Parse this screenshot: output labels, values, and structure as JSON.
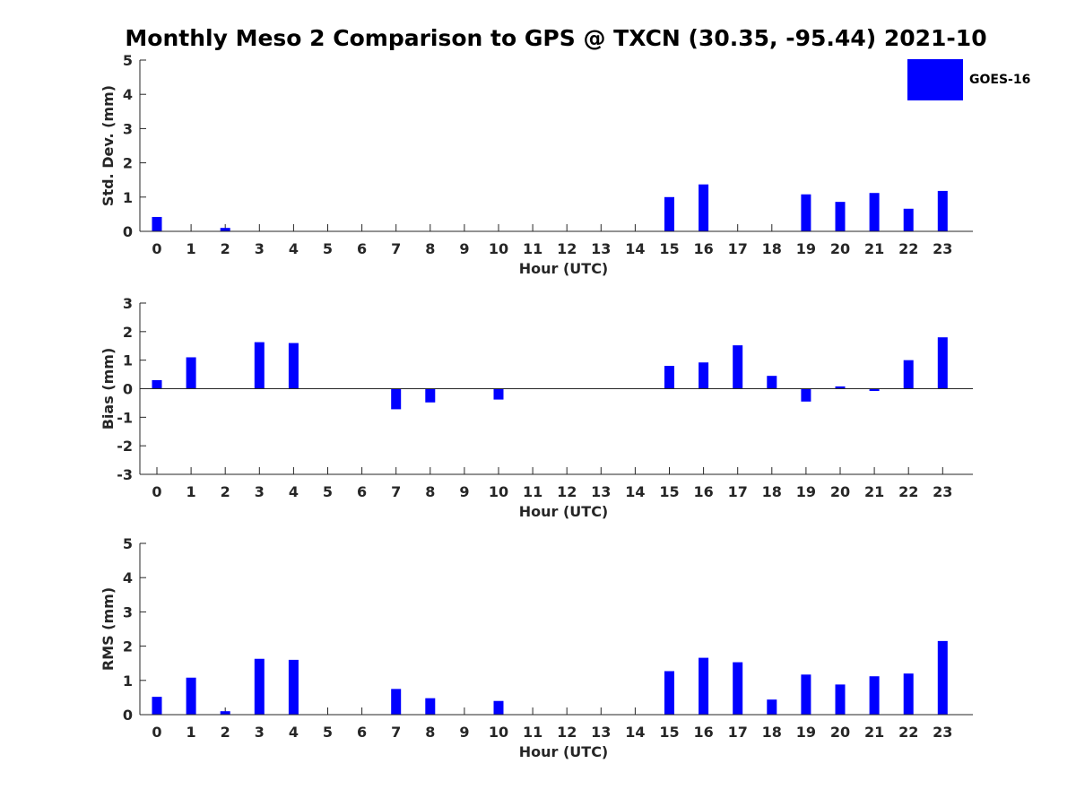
{
  "title": "Monthly Meso 2 Comparison to GPS @ TXCN (30.35, -95.44) 2021-10",
  "legend": {
    "label": "GOES-16",
    "color": "#0000ff"
  },
  "chart_data": [
    {
      "type": "bar",
      "title": "",
      "xlabel": "Hour (UTC)",
      "ylabel": "Std. Dev. (mm)",
      "ylim": [
        0,
        5
      ],
      "yticks": [
        "0",
        "1",
        "2",
        "3",
        "4",
        "5"
      ],
      "categories": [
        "0",
        "1",
        "2",
        "3",
        "4",
        "5",
        "6",
        "7",
        "8",
        "9",
        "10",
        "11",
        "12",
        "13",
        "14",
        "15",
        "16",
        "17",
        "18",
        "19",
        "20",
        "21",
        "22",
        "23"
      ],
      "series": [
        {
          "name": "GOES-16",
          "values": [
            0.42,
            0,
            0.1,
            0,
            0,
            0,
            0,
            0,
            0,
            0,
            0,
            0,
            0,
            0,
            0,
            1.0,
            1.37,
            0,
            0,
            1.08,
            0.86,
            1.12,
            0.66,
            1.18
          ]
        }
      ]
    },
    {
      "type": "bar",
      "title": "",
      "xlabel": "Hour (UTC)",
      "ylabel": "Bias (mm)",
      "ylim": [
        -3,
        3
      ],
      "yticks": [
        "-3",
        "-2",
        "-1",
        "0",
        "1",
        "2",
        "3"
      ],
      "categories": [
        "0",
        "1",
        "2",
        "3",
        "4",
        "5",
        "6",
        "7",
        "8",
        "9",
        "10",
        "11",
        "12",
        "13",
        "14",
        "15",
        "16",
        "17",
        "18",
        "19",
        "20",
        "21",
        "22",
        "23"
      ],
      "series": [
        {
          "name": "GOES-16",
          "values": [
            0.3,
            1.1,
            0,
            1.63,
            1.6,
            0,
            0,
            -0.72,
            -0.48,
            0,
            -0.38,
            0,
            0,
            0,
            0,
            0.8,
            0.92,
            1.52,
            0.45,
            -0.45,
            0.08,
            -0.08,
            1.0,
            1.8
          ]
        }
      ]
    },
    {
      "type": "bar",
      "title": "",
      "xlabel": "Hour (UTC)",
      "ylabel": "RMS (mm)",
      "ylim": [
        0,
        5
      ],
      "yticks": [
        "0",
        "1",
        "2",
        "3",
        "4",
        "5"
      ],
      "categories": [
        "0",
        "1",
        "2",
        "3",
        "4",
        "5",
        "6",
        "7",
        "8",
        "9",
        "10",
        "11",
        "12",
        "13",
        "14",
        "15",
        "16",
        "17",
        "18",
        "19",
        "20",
        "21",
        "22",
        "23"
      ],
      "series": [
        {
          "name": "GOES-16",
          "values": [
            0.52,
            1.08,
            0.1,
            1.63,
            1.6,
            0,
            0,
            0.75,
            0.48,
            0,
            0.4,
            0,
            0,
            0,
            0,
            1.27,
            1.66,
            1.53,
            0.44,
            1.17,
            0.88,
            1.12,
            1.2,
            2.15
          ]
        }
      ]
    }
  ]
}
